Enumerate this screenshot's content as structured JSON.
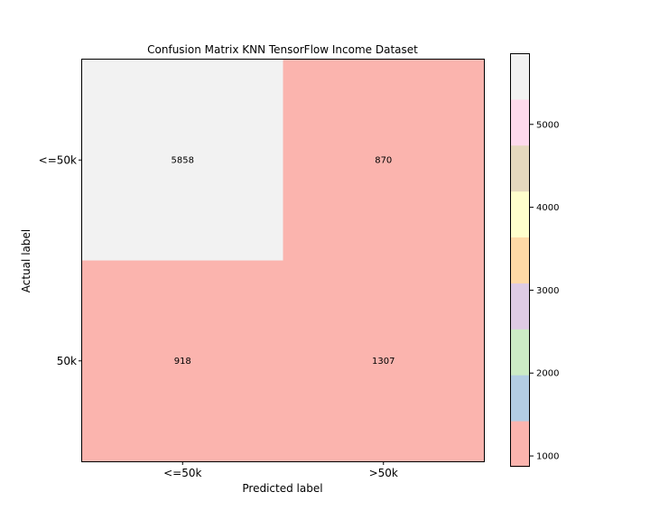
{
  "chart_data": {
    "type": "heatmap",
    "title": "Confusion Matrix KNN TensorFlow Income Dataset",
    "xlabel": "Predicted label",
    "ylabel": "Actual label",
    "x_categories": [
      "<=50k",
      ">50k"
    ],
    "y_categories": [
      "<=50k",
      "50k"
    ],
    "values": [
      [
        5858,
        870
      ],
      [
        918,
        1307
      ]
    ],
    "colormap": "Pastel1",
    "colorbar": {
      "range": [
        870,
        5858
      ],
      "ticks": [
        1000,
        2000,
        3000,
        4000,
        5000
      ],
      "colors": [
        "#fbb4ae",
        "#b3cde3",
        "#ccebc5",
        "#decbe4",
        "#fed9a6",
        "#ffffcc",
        "#e5d8bd",
        "#fddaec",
        "#f2f2f2"
      ]
    },
    "grid": false
  }
}
